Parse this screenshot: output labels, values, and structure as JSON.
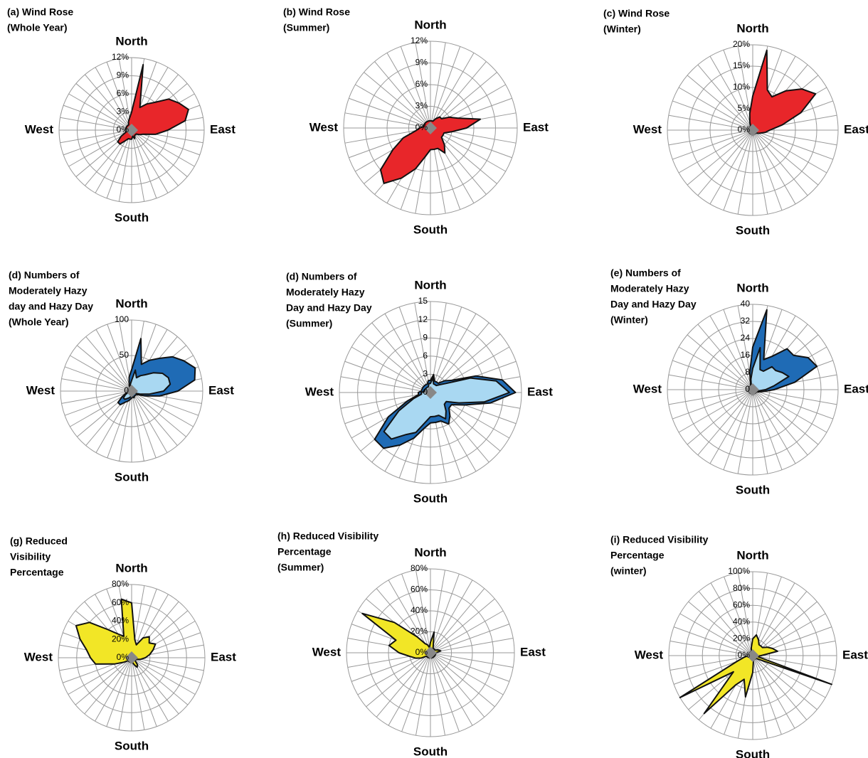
{
  "chart_data": [
    {
      "type": "radar",
      "title": [
        "(a) Wind Rose",
        "(Whole Year)"
      ],
      "categories": [
        "North",
        null,
        null,
        null,
        null,
        null,
        null,
        null,
        null,
        "East",
        null,
        null,
        null,
        null,
        null,
        null,
        null,
        null,
        "South",
        null,
        null,
        null,
        null,
        null,
        null,
        null,
        null,
        "West",
        null,
        null,
        null,
        null,
        null,
        null,
        null,
        null
      ],
      "rlim": [
        0,
        12
      ],
      "rticks": [
        {
          "value": 0,
          "label": "0%"
        },
        {
          "value": 3,
          "label": "3%"
        },
        {
          "value": 6,
          "label": "6%"
        },
        {
          "value": 9,
          "label": "9%"
        },
        {
          "value": 12,
          "label": "12%"
        }
      ],
      "series": [
        {
          "color": "#e8262a",
          "values": [
            3,
            11,
            4,
            5,
            6,
            8,
            9,
            10,
            9,
            6,
            4,
            2,
            1.5,
            1,
            1,
            1,
            1.5,
            1,
            1.5,
            1.5,
            1.5,
            2,
            3,
            3,
            2,
            1,
            1,
            1,
            1,
            1,
            1,
            1,
            1,
            1,
            1.5,
            2
          ]
        }
      ]
    },
    {
      "type": "radar",
      "title": [
        "(b) Wind Rose",
        "(Summer)"
      ],
      "categories": [
        "North",
        null,
        null,
        null,
        null,
        null,
        null,
        null,
        null,
        "East",
        null,
        null,
        null,
        null,
        null,
        null,
        null,
        null,
        "South",
        null,
        null,
        null,
        null,
        null,
        null,
        null,
        null,
        "West",
        null,
        null,
        null,
        null,
        null,
        null,
        null,
        null
      ],
      "rlim": [
        0,
        12
      ],
      "rticks": [
        {
          "value": 0,
          "label": "0%"
        },
        {
          "value": 3,
          "label": "3%"
        },
        {
          "value": 6,
          "label": "6%"
        },
        {
          "value": 9,
          "label": "9%"
        },
        {
          "value": 12,
          "label": "12%"
        }
      ],
      "series": [
        {
          "color": "#e8262a",
          "values": [
            1,
            1,
            1,
            1.5,
            2,
            2,
            3,
            4,
            7,
            5,
            3,
            2,
            2,
            2,
            3,
            4,
            3,
            3,
            3,
            4,
            6,
            8,
            10,
            9,
            6,
            4,
            2,
            1.5,
            1,
            1,
            1,
            1,
            1,
            1,
            1,
            1
          ]
        }
      ]
    },
    {
      "type": "radar",
      "title": [
        "(c) Wind Rose",
        "(Winter)"
      ],
      "categories": [
        "North",
        null,
        null,
        null,
        null,
        null,
        null,
        null,
        null,
        "East",
        null,
        null,
        null,
        null,
        null,
        null,
        null,
        null,
        "South",
        null,
        null,
        null,
        null,
        null,
        null,
        null,
        null,
        "West",
        null,
        null,
        null,
        null,
        null,
        null,
        null,
        null
      ],
      "rlim": [
        0,
        20
      ],
      "rticks": [
        {
          "value": 0,
          "label": "0%"
        },
        {
          "value": 5,
          "label": "5%"
        },
        {
          "value": 10,
          "label": "10%"
        },
        {
          "value": 15,
          "label": "15%"
        },
        {
          "value": 20,
          "label": "20%"
        }
      ],
      "series": [
        {
          "color": "#e8262a",
          "values": [
            8,
            19,
            10,
            9,
            12,
            15,
            17,
            12,
            7,
            4,
            3,
            2,
            1.5,
            1,
            1,
            1,
            1,
            1,
            1,
            1,
            1,
            1,
            1,
            1,
            1,
            1,
            1,
            1,
            1,
            1,
            1,
            1,
            1,
            1,
            2,
            4
          ]
        }
      ]
    },
    {
      "type": "radar",
      "title": [
        "(d) Numbers of",
        "Moderately Hazy",
        "day and Hazy Day",
        "(Whole Year)"
      ],
      "categories": [
        "North",
        null,
        null,
        null,
        null,
        null,
        null,
        null,
        null,
        "East",
        null,
        null,
        null,
        null,
        null,
        null,
        null,
        null,
        "South",
        null,
        null,
        null,
        null,
        null,
        null,
        null,
        null,
        "West",
        null,
        null,
        null,
        null,
        null,
        null,
        null,
        null
      ],
      "rlim": [
        0,
        100
      ],
      "rticks": [
        0,
        50,
        100
      ],
      "series": [
        {
          "color": "#1f6bb5",
          "values": [
            30,
            75,
            40,
            50,
            60,
            75,
            85,
            95,
            90,
            65,
            40,
            20,
            10,
            8,
            8,
            8,
            10,
            8,
            10,
            12,
            15,
            18,
            25,
            25,
            15,
            8,
            6,
            5,
            5,
            5,
            5,
            5,
            5,
            6,
            10,
            20
          ]
        },
        {
          "color": "#a9d8f2",
          "values": [
            15,
            30,
            20,
            25,
            30,
            40,
            50,
            55,
            55,
            45,
            25,
            12,
            6,
            5,
            5,
            5,
            6,
            5,
            6,
            8,
            10,
            12,
            15,
            15,
            10,
            5,
            4,
            3,
            3,
            3,
            3,
            3,
            3,
            4,
            6,
            10
          ]
        }
      ]
    },
    {
      "type": "radar",
      "title": [
        "(d) Numbers of",
        "Moderately Hazy",
        "Day and Hazy Day",
        "(Summer)"
      ],
      "categories": [
        "North",
        null,
        null,
        null,
        null,
        null,
        null,
        null,
        null,
        "East",
        null,
        null,
        null,
        null,
        null,
        null,
        null,
        null,
        "South",
        null,
        null,
        null,
        null,
        null,
        null,
        null,
        null,
        "West",
        null,
        null,
        null,
        null,
        null,
        null,
        null,
        null
      ],
      "rlim": [
        0,
        15
      ],
      "rticks": [
        0,
        3,
        6,
        9,
        12,
        15
      ],
      "series": [
        {
          "color": "#1f6bb5",
          "values": [
            2,
            3,
            2,
            2,
            2,
            3,
            4,
            8,
            12,
            14,
            10,
            6,
            4,
            4,
            5,
            6,
            5,
            5,
            5,
            6,
            8,
            10,
            12,
            12,
            8,
            4,
            2,
            2,
            1.5,
            1.5,
            1.5,
            1.5,
            1.5,
            1.5,
            1.5,
            2
          ]
        },
        {
          "color": "#a9d8f2",
          "values": [
            1.5,
            2.5,
            1.5,
            1.5,
            1.5,
            2,
            3,
            7,
            11,
            13,
            9,
            5,
            3,
            3,
            4,
            5,
            4,
            4,
            4,
            5,
            7,
            8,
            10,
            10,
            6,
            3,
            1.5,
            1.5,
            1,
            1,
            1,
            1,
            1,
            1,
            1,
            1.5
          ]
        }
      ]
    },
    {
      "type": "radar",
      "title": [
        "(e) Numbers of",
        "Moderately Hazy",
        "Day and Hazy Day",
        "(Winter)"
      ],
      "categories": [
        "North",
        null,
        null,
        null,
        null,
        null,
        null,
        null,
        null,
        "East",
        null,
        null,
        null,
        null,
        null,
        null,
        null,
        null,
        "South",
        null,
        null,
        null,
        null,
        null,
        null,
        null,
        null,
        "West",
        null,
        null,
        null,
        null,
        null,
        null,
        null,
        null
      ],
      "rlim": [
        0,
        40
      ],
      "rticks": [
        0,
        8,
        16,
        24,
        32,
        40
      ],
      "series": [
        {
          "color": "#1f6bb5",
          "values": [
            20,
            38,
            15,
            18,
            25,
            25,
            30,
            32,
            20,
            10,
            5,
            3,
            2,
            2,
            2,
            2,
            2,
            2,
            2,
            2,
            2,
            2,
            2,
            2,
            2,
            2,
            2,
            2,
            2,
            2,
            2,
            2,
            2,
            2,
            3,
            8
          ]
        },
        {
          "color": "#a9d8f2",
          "values": [
            10,
            20,
            10,
            10,
            14,
            14,
            16,
            18,
            10,
            6,
            3,
            2,
            1,
            1,
            1,
            1,
            1,
            1,
            1,
            1,
            1,
            1,
            1,
            1,
            1,
            1,
            1,
            1,
            1,
            1,
            1,
            1,
            1,
            1,
            2,
            5
          ]
        }
      ]
    },
    {
      "type": "radar",
      "title": [
        "(g) Reduced",
        "Visibility",
        "Percentage"
      ],
      "categories": [
        "North",
        null,
        null,
        null,
        null,
        null,
        null,
        null,
        null,
        "East",
        null,
        null,
        null,
        null,
        null,
        null,
        null,
        null,
        "South",
        null,
        null,
        null,
        null,
        null,
        null,
        null,
        null,
        "West",
        null,
        null,
        null,
        null,
        null,
        null,
        null,
        null
      ],
      "rlim": [
        0,
        80
      ],
      "rticks": [
        {
          "value": 0,
          "label": "0%"
        },
        {
          "value": 20,
          "label": "20%"
        },
        {
          "value": 40,
          "label": "40%"
        },
        {
          "value": 60,
          "label": "60%"
        },
        {
          "value": 80,
          "label": "80%"
        }
      ],
      "series": [
        {
          "color": "#f2e626",
          "values": [
            60,
            20,
            15,
            25,
            30,
            25,
            30,
            25,
            20,
            15,
            10,
            5,
            5,
            5,
            10,
            12,
            8,
            5,
            5,
            5,
            5,
            5,
            5,
            5,
            10,
            20,
            40,
            45,
            50,
            60,
            70,
            60,
            40,
            30,
            25,
            65
          ]
        }
      ]
    },
    {
      "type": "radar",
      "title": [
        "(h) Reduced Visibility",
        "Percentage",
        "(Summer)"
      ],
      "categories": [
        "North",
        null,
        null,
        null,
        null,
        null,
        null,
        null,
        null,
        "East",
        null,
        null,
        null,
        null,
        null,
        null,
        null,
        null,
        "South",
        null,
        null,
        null,
        null,
        null,
        null,
        null,
        null,
        "West",
        null,
        null,
        null,
        null,
        null,
        null,
        null,
        null
      ],
      "rlim": [
        0,
        80
      ],
      "rticks": [
        {
          "value": 0,
          "label": "0%"
        },
        {
          "value": 20,
          "label": "20%"
        },
        {
          "value": 40,
          "label": "40%"
        },
        {
          "value": 60,
          "label": "60%"
        },
        {
          "value": 80,
          "label": "80%"
        }
      ],
      "series": [
        {
          "color": "#f2e626",
          "values": [
            10,
            20,
            8,
            5,
            5,
            5,
            5,
            8,
            10,
            5,
            5,
            5,
            5,
            5,
            5,
            5,
            5,
            5,
            5,
            5,
            5,
            5,
            5,
            5,
            10,
            15,
            20,
            30,
            40,
            35,
            75,
            45,
            20,
            10,
            8,
            5
          ]
        }
      ]
    },
    {
      "type": "radar",
      "title": [
        "(i) Reduced Visibility",
        "Percentage",
        "(winter)"
      ],
      "categories": [
        "North",
        null,
        null,
        null,
        null,
        null,
        null,
        null,
        null,
        "East",
        null,
        null,
        null,
        null,
        null,
        null,
        null,
        null,
        "South",
        null,
        null,
        null,
        null,
        null,
        null,
        null,
        null,
        "West",
        null,
        null,
        null,
        null,
        null,
        null,
        null,
        null
      ],
      "rlim": [
        0,
        100
      ],
      "rticks": [
        {
          "value": 0,
          "label": "0%"
        },
        {
          "value": 20,
          "label": "20%"
        },
        {
          "value": 40,
          "label": "40%"
        },
        {
          "value": 60,
          "label": "60%"
        },
        {
          "value": 80,
          "label": "80%"
        },
        {
          "value": 100,
          "label": "100%"
        }
      ],
      "series": [
        {
          "color": "#f2e626",
          "values": [
            20,
            25,
            20,
            15,
            15,
            15,
            20,
            25,
            30,
            10,
            5,
            100,
            10,
            5,
            5,
            5,
            5,
            5,
            20,
            50,
            30,
            40,
            90,
            30,
            100,
            20,
            10,
            5,
            5,
            5,
            5,
            5,
            5,
            5,
            5,
            10
          ]
        }
      ]
    }
  ]
}
